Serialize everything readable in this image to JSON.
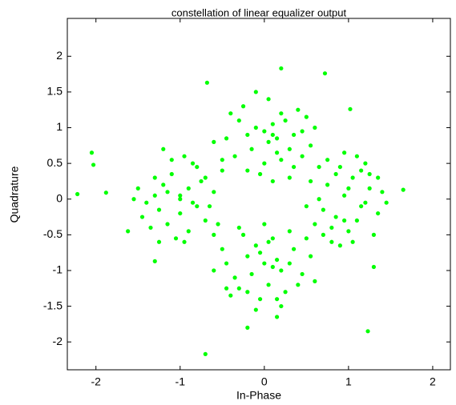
{
  "chart_data": {
    "type": "scatter",
    "title": "constellation of linear equalizer output",
    "x_label": "In-Phase",
    "y_label": "Quadrature",
    "color": "#00ff00",
    "x": [
      0.05,
      -0.2,
      0.3,
      0.1,
      -0.35,
      0.45,
      0,
      0.2,
      -0.1,
      0.35,
      -0.45,
      0.15,
      0.55,
      -0.25,
      0.25,
      -0.05,
      0.4,
      -0.3,
      0.1,
      0.6,
      -0.5,
      0.05,
      0.3,
      -0.15,
      0.2,
      0.45,
      -0.4,
      0,
      0.15,
      -0.2,
      0.5,
      -0.6,
      0.35,
      0.1,
      -0.1,
      -1.0,
      -1.2,
      -0.8,
      -1.1,
      -0.9,
      -1.4,
      -0.6,
      -1.3,
      -0.7,
      -1.0,
      -1.5,
      -0.5,
      -1.15,
      -0.85,
      -1.25,
      -0.95,
      -0.75,
      -1.35,
      -1.05,
      -0.65,
      -1.45,
      -0.9,
      -1.1,
      -0.8,
      -1.2,
      -0.55,
      -1.0,
      -1.3,
      -0.7,
      -1.55,
      -0.95,
      -0.85,
      -1.15,
      -0.6,
      -1.25,
      0.95,
      0.75,
      1.15,
      0.85,
      1.05,
      0.65,
      1.25,
      0.9,
      1.35,
      0.55,
      1.0,
      1.2,
      0.8,
      1.4,
      0.7,
      1.1,
      0.6,
      1.3,
      0.95,
      0.85,
      1.45,
      0.5,
      1.05,
      0.75,
      1.15,
      0.9,
      1.25,
      0.65,
      1.0,
      0.8,
      1.35,
      1.1,
      0.7,
      1.2,
      0.95,
      0,
      -0.2,
      0.2,
      -0.1,
      0.15,
      -0.35,
      0.35,
      0.05,
      -0.25,
      0.25,
      -0.45,
      0.45,
      -0.05,
      0.1,
      -0.3,
      0.3,
      -0.15,
      0.55,
      -0.5,
      0,
      0.2,
      -0.4,
      0.4,
      0.1,
      -0.2,
      0.6,
      -0.6,
      0.05,
      -0.1,
      0.3,
      -0.3,
      0.15,
      -0.05,
      0.5,
      -0.45,
      -2.22,
      -2.05,
      -2.03,
      -1.88,
      0.2,
      0.72,
      1.02,
      -0.68,
      1.23,
      -0.7,
      -0.2,
      0.15,
      1.65,
      -1.62,
      1.3,
      -1.3
    ],
    "y": [
      0.8,
      0.9,
      0.7,
      1.05,
      0.6,
      0.95,
      0.5,
      1.2,
      1.0,
      0.45,
      0.85,
      0.65,
      0.75,
      1.3,
      1.1,
      0.35,
      1.25,
      1.1,
      0.9,
      1.0,
      0.55,
      1.4,
      0.3,
      0.7,
      0.55,
      0.6,
      1.2,
      0.95,
      0.85,
      0.4,
      1.15,
      0.8,
      0.9,
      0.25,
      1.5,
      0.05,
      0.2,
      -0.1,
      0.35,
      0.15,
      -0.05,
      0.1,
      0.3,
      -0.3,
      -0.2,
      0.15,
      0.4,
      -0.35,
      0.5,
      -0.15,
      0.6,
      0.25,
      -0.4,
      -0.55,
      -0.1,
      -0.25,
      -0.45,
      0.55,
      0.45,
      0.7,
      -0.35,
      0,
      0.05,
      0.3,
      0,
      -0.6,
      -0.05,
      0.1,
      -0.5,
      -0.6,
      0.05,
      0.2,
      -0.1,
      -0.25,
      0.3,
      0,
      0.15,
      0.45,
      -0.2,
      0.25,
      -0.45,
      0.5,
      -0.4,
      0.1,
      -0.15,
      0.6,
      -0.35,
      -0.5,
      0.65,
      0.35,
      -0.05,
      -0.1,
      -0.6,
      0.55,
      0.4,
      -0.65,
      0.35,
      0.45,
      0.15,
      -0.6,
      0.3,
      -0.3,
      -0.5,
      -0.05,
      -0.3,
      -0.9,
      -0.8,
      -1.0,
      -0.65,
      -0.85,
      -1.1,
      -0.7,
      -1.2,
      -0.5,
      -1.3,
      -0.9,
      -1.05,
      -1.4,
      -0.55,
      -1.25,
      -0.45,
      -1.05,
      -0.8,
      -0.7,
      -0.35,
      -1.5,
      -1.35,
      -1.2,
      -0.95,
      -1.3,
      -1.15,
      -1.0,
      -0.6,
      -1.55,
      -0.9,
      -0.4,
      -1.4,
      -0.75,
      -0.55,
      -1.25,
      0.07,
      0.65,
      0.48,
      0.09,
      1.83,
      1.76,
      1.26,
      1.63,
      -1.85,
      -2.17,
      -1.8,
      -1.65,
      0.13,
      -0.45,
      -0.95,
      -0.87
    ],
    "xlim": [
      -2.34,
      2.21
    ],
    "ylim": [
      -2.39,
      2.53
    ],
    "xticks": [
      -2,
      -1,
      0,
      1,
      2
    ],
    "yticks": [
      -2,
      -1.5,
      -1,
      -0.5,
      0,
      0.5,
      1,
      1.5,
      2
    ]
  }
}
